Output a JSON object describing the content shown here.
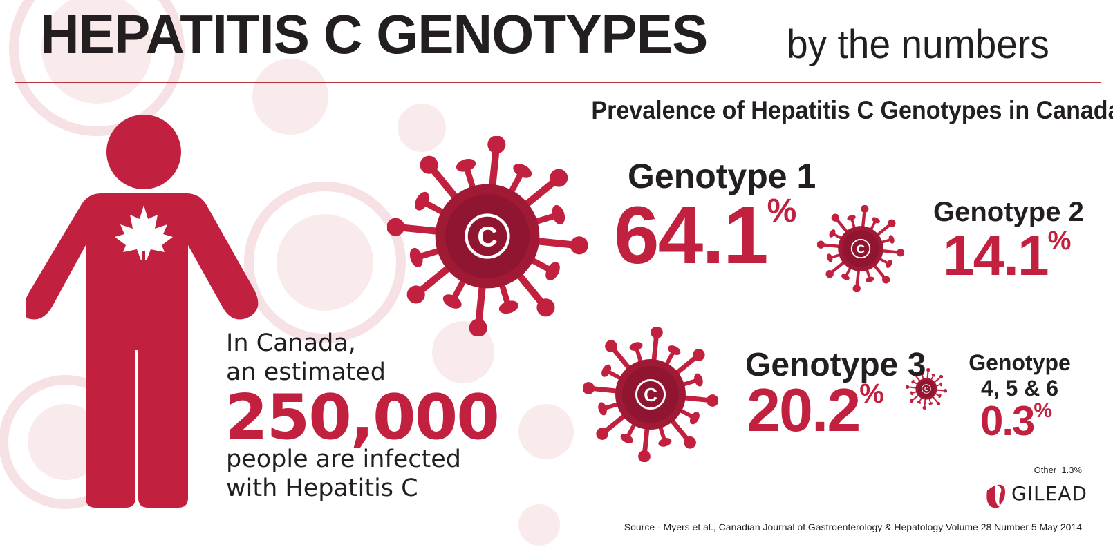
{
  "header": {
    "title": "HEPATITIS C GENOTYPES",
    "subtitle": "by the numbers"
  },
  "section": {
    "heading": "Prevalence of Hepatitis C Genotypes in Canada"
  },
  "statistic": {
    "line1": "In Canada,",
    "line2": "an estimated",
    "number": "250,000",
    "line3": "people are infected",
    "line4": "with Hepatitis C"
  },
  "genotypes": [
    {
      "name": "Genotype 1",
      "value": "64.1",
      "unit": "%",
      "share_percent": 64.1
    },
    {
      "name": "Genotype 2",
      "value": "14.1",
      "unit": "%",
      "share_percent": 14.1
    },
    {
      "name": "Genotype 3",
      "value": "20.2",
      "unit": "%",
      "share_percent": 20.2
    },
    {
      "name_line1": "Genotype",
      "name_line2": "4, 5 & 6",
      "value": "0.3",
      "unit": "%",
      "share_percent": 0.3
    }
  ],
  "other": {
    "label": "Other",
    "value": "1.3%"
  },
  "virus_letter": "C",
  "logo": {
    "text": "GILEAD"
  },
  "source": "Source - Myers et al., Canadian Journal of Gastroenterology & Hepatology Volume 28 Number 5 May 2014",
  "icons": {
    "person": "person-silhouette-icon",
    "leaf": "maple-leaf-icon",
    "virus": "virus-icon",
    "logo": "gilead-logo-icon"
  },
  "colors": {
    "accent": "#c2203f",
    "virus_core": "#8f1530",
    "virus_mid": "#a01a36",
    "text_dark": "#231f20",
    "background_pattern": "#f8e6e8"
  }
}
